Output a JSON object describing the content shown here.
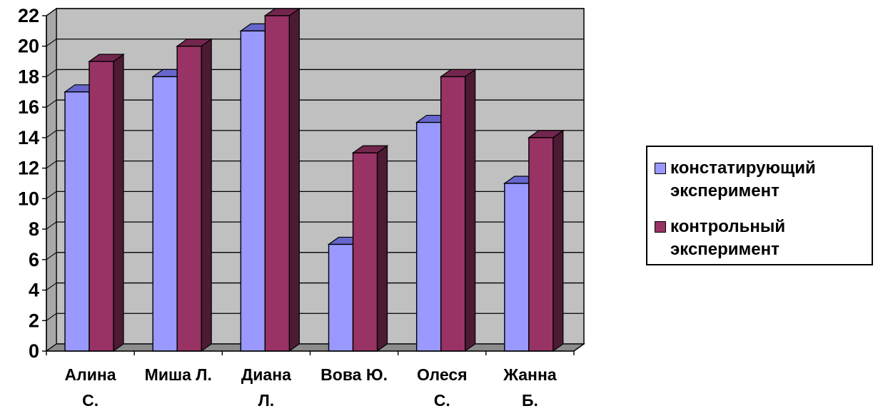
{
  "chart_data": {
    "type": "bar",
    "categories": [
      [
        "Алина",
        "С."
      ],
      [
        "Миша Л."
      ],
      [
        "Диана",
        "Л."
      ],
      [
        "Вова Ю."
      ],
      [
        "Олеся",
        "С."
      ],
      [
        "Жанна",
        "Б."
      ]
    ],
    "series": [
      {
        "name": "констатирующий эксперимент",
        "values": [
          17,
          18,
          21,
          7,
          15,
          11
        ],
        "color": "#9999ff",
        "top_color": "#6666cc",
        "side_color": "#4d4d99"
      },
      {
        "name": "контрольный эксперимент",
        "values": [
          19,
          20,
          22,
          13,
          18,
          14
        ],
        "color": "#993366",
        "top_color": "#73264d",
        "side_color": "#4d1a33"
      }
    ],
    "ylim": [
      0,
      22
    ],
    "yticks": [
      0,
      2,
      4,
      6,
      8,
      10,
      12,
      14,
      16,
      18,
      20,
      22
    ],
    "grid": true,
    "plot_background": "#c0c0c0",
    "legend_position": "right",
    "style": "3d-column"
  }
}
